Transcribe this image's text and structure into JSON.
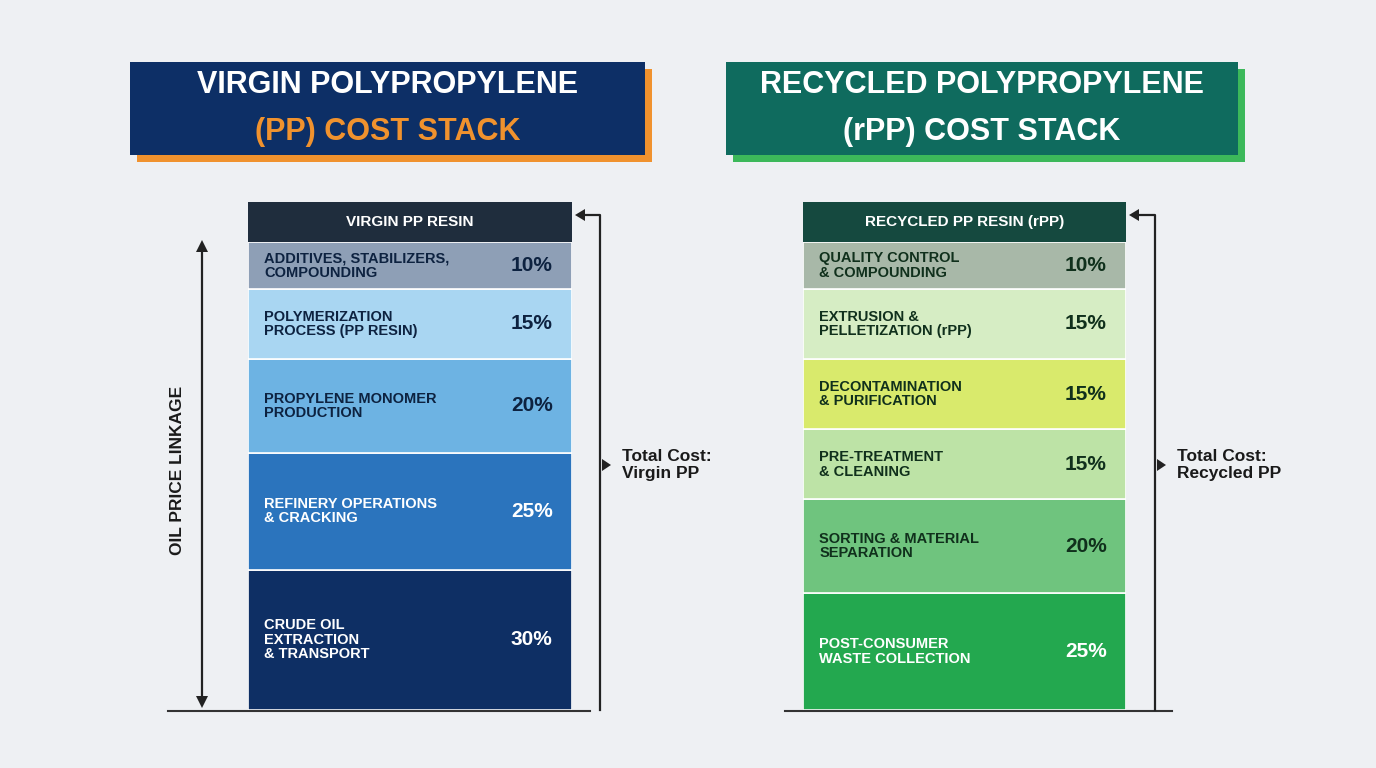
{
  "chart_data": [
    {
      "type": "bar",
      "stacked": true,
      "data_labels": true,
      "tick_labels": false,
      "title": "VIRGIN POLYPROPYLENE\n(PP) COST STACK",
      "categories": [
        "VIRGIN PP RESIN"
      ],
      "ylim": [
        0,
        100
      ],
      "annotations": [
        "Total Cost:\nVirgin PP",
        "OIL PRICE LINKAGE"
      ],
      "series": [
        {
          "name": "CRUDE OIL\nEXTRACTION\n& TRANSPORT",
          "color": "#0e2f64",
          "values": [
            30
          ],
          "value_labels": [
            "30%"
          ]
        },
        {
          "name": "REFINERY OPERATIONS\n& CRACKING",
          "color": "#2b74bd",
          "values": [
            25
          ],
          "value_labels": [
            "25%"
          ]
        },
        {
          "name": "PROPYLENE MONOMER\nPRODUCTION",
          "color": "#6db3e3",
          "values": [
            20
          ],
          "value_labels": [
            "20%"
          ]
        },
        {
          "name": "POLYMERIZATION\nPROCESS (PP RESIN)",
          "color": "#a9d6f2",
          "values": [
            15
          ],
          "value_labels": [
            "15%"
          ]
        },
        {
          "name": "ADDITIVES, STABILIZERS,\nCOMPOUNDING",
          "color": "#8e9fb6",
          "values": [
            10
          ],
          "value_labels": [
            "10%"
          ]
        }
      ]
    },
    {
      "type": "bar",
      "stacked": true,
      "data_labels": true,
      "tick_labels": false,
      "title": "RECYCLED POLYPROPYLENE\n(rPP) COST STACK",
      "categories": [
        "RECYCLED PP RESIN (rPP)"
      ],
      "ylim": [
        0,
        100
      ],
      "annotations": [
        "Total Cost:\nRecycled PP"
      ],
      "series": [
        {
          "name": "POST-CONSUMER\nWASTE COLLECTION",
          "color": "#23a84f",
          "values": [
            25
          ],
          "value_labels": [
            "25%"
          ]
        },
        {
          "name": "SORTING & MATERIAL\nSEPARATION",
          "color": "#6fc47e",
          "values": [
            20
          ],
          "value_labels": [
            "20%"
          ]
        },
        {
          "name": "PRE-TREATMENT\n& CLEANING",
          "color": "#bde3a6",
          "values": [
            15
          ],
          "value_labels": [
            "15%"
          ]
        },
        {
          "name": "DECONTAMINATION\n& PURIFICATION",
          "color": "#d9ea6c",
          "values": [
            15
          ],
          "value_labels": [
            "15%"
          ]
        },
        {
          "name": "EXTRUSION &\nPELLETIZATION (rPP)",
          "color": "#d6edc4",
          "values": [
            15
          ],
          "value_labels": [
            "15%"
          ]
        },
        {
          "name": "QUALITY CONTROL\n& COMPOUNDING",
          "color": "#a8b8a8",
          "values": [
            10
          ],
          "value_labels": [
            "10%"
          ]
        }
      ]
    }
  ]
}
